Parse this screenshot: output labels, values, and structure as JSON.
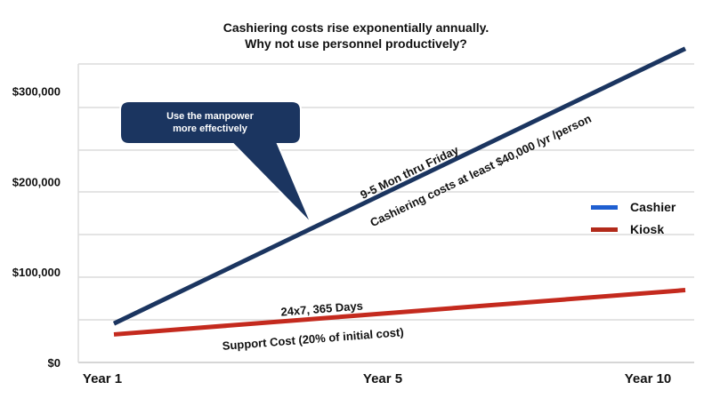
{
  "chart_data": {
    "type": "line",
    "title_line1": "Cashiering costs rise exponentially annually.",
    "title_line2": "Why not use personnel productively?",
    "x_ticks": [
      "Year 1",
      "Year 5",
      "Year 10"
    ],
    "x_values": [
      1,
      10
    ],
    "y_ticks": [
      "$0",
      "$100,000",
      "$200,000",
      "$300,000"
    ],
    "ylim": [
      0,
      330000
    ],
    "grid": true,
    "legend_position": "right",
    "series": [
      {
        "name": "Cashier",
        "color": "#1f5fd1",
        "line_color": "#1b3560",
        "x": [
          1,
          10
        ],
        "values": [
          43000,
          347000
        ]
      },
      {
        "name": "Kiosk",
        "color": "#b22a1a",
        "line_color": "#c42a1e",
        "x": [
          1,
          10
        ],
        "values": [
          31000,
          80000
        ]
      }
    ],
    "annotations": {
      "cashier_line1": "9-5 Mon thru Friday",
      "cashier_line2": "Cashiering costs at least $40,000 /yr /person",
      "kiosk_above": "24x7, 365 Days",
      "kiosk_below": "Support Cost (20% of initial cost)",
      "callout_line1": "Use the manpower",
      "callout_line2": "more effectively"
    }
  }
}
